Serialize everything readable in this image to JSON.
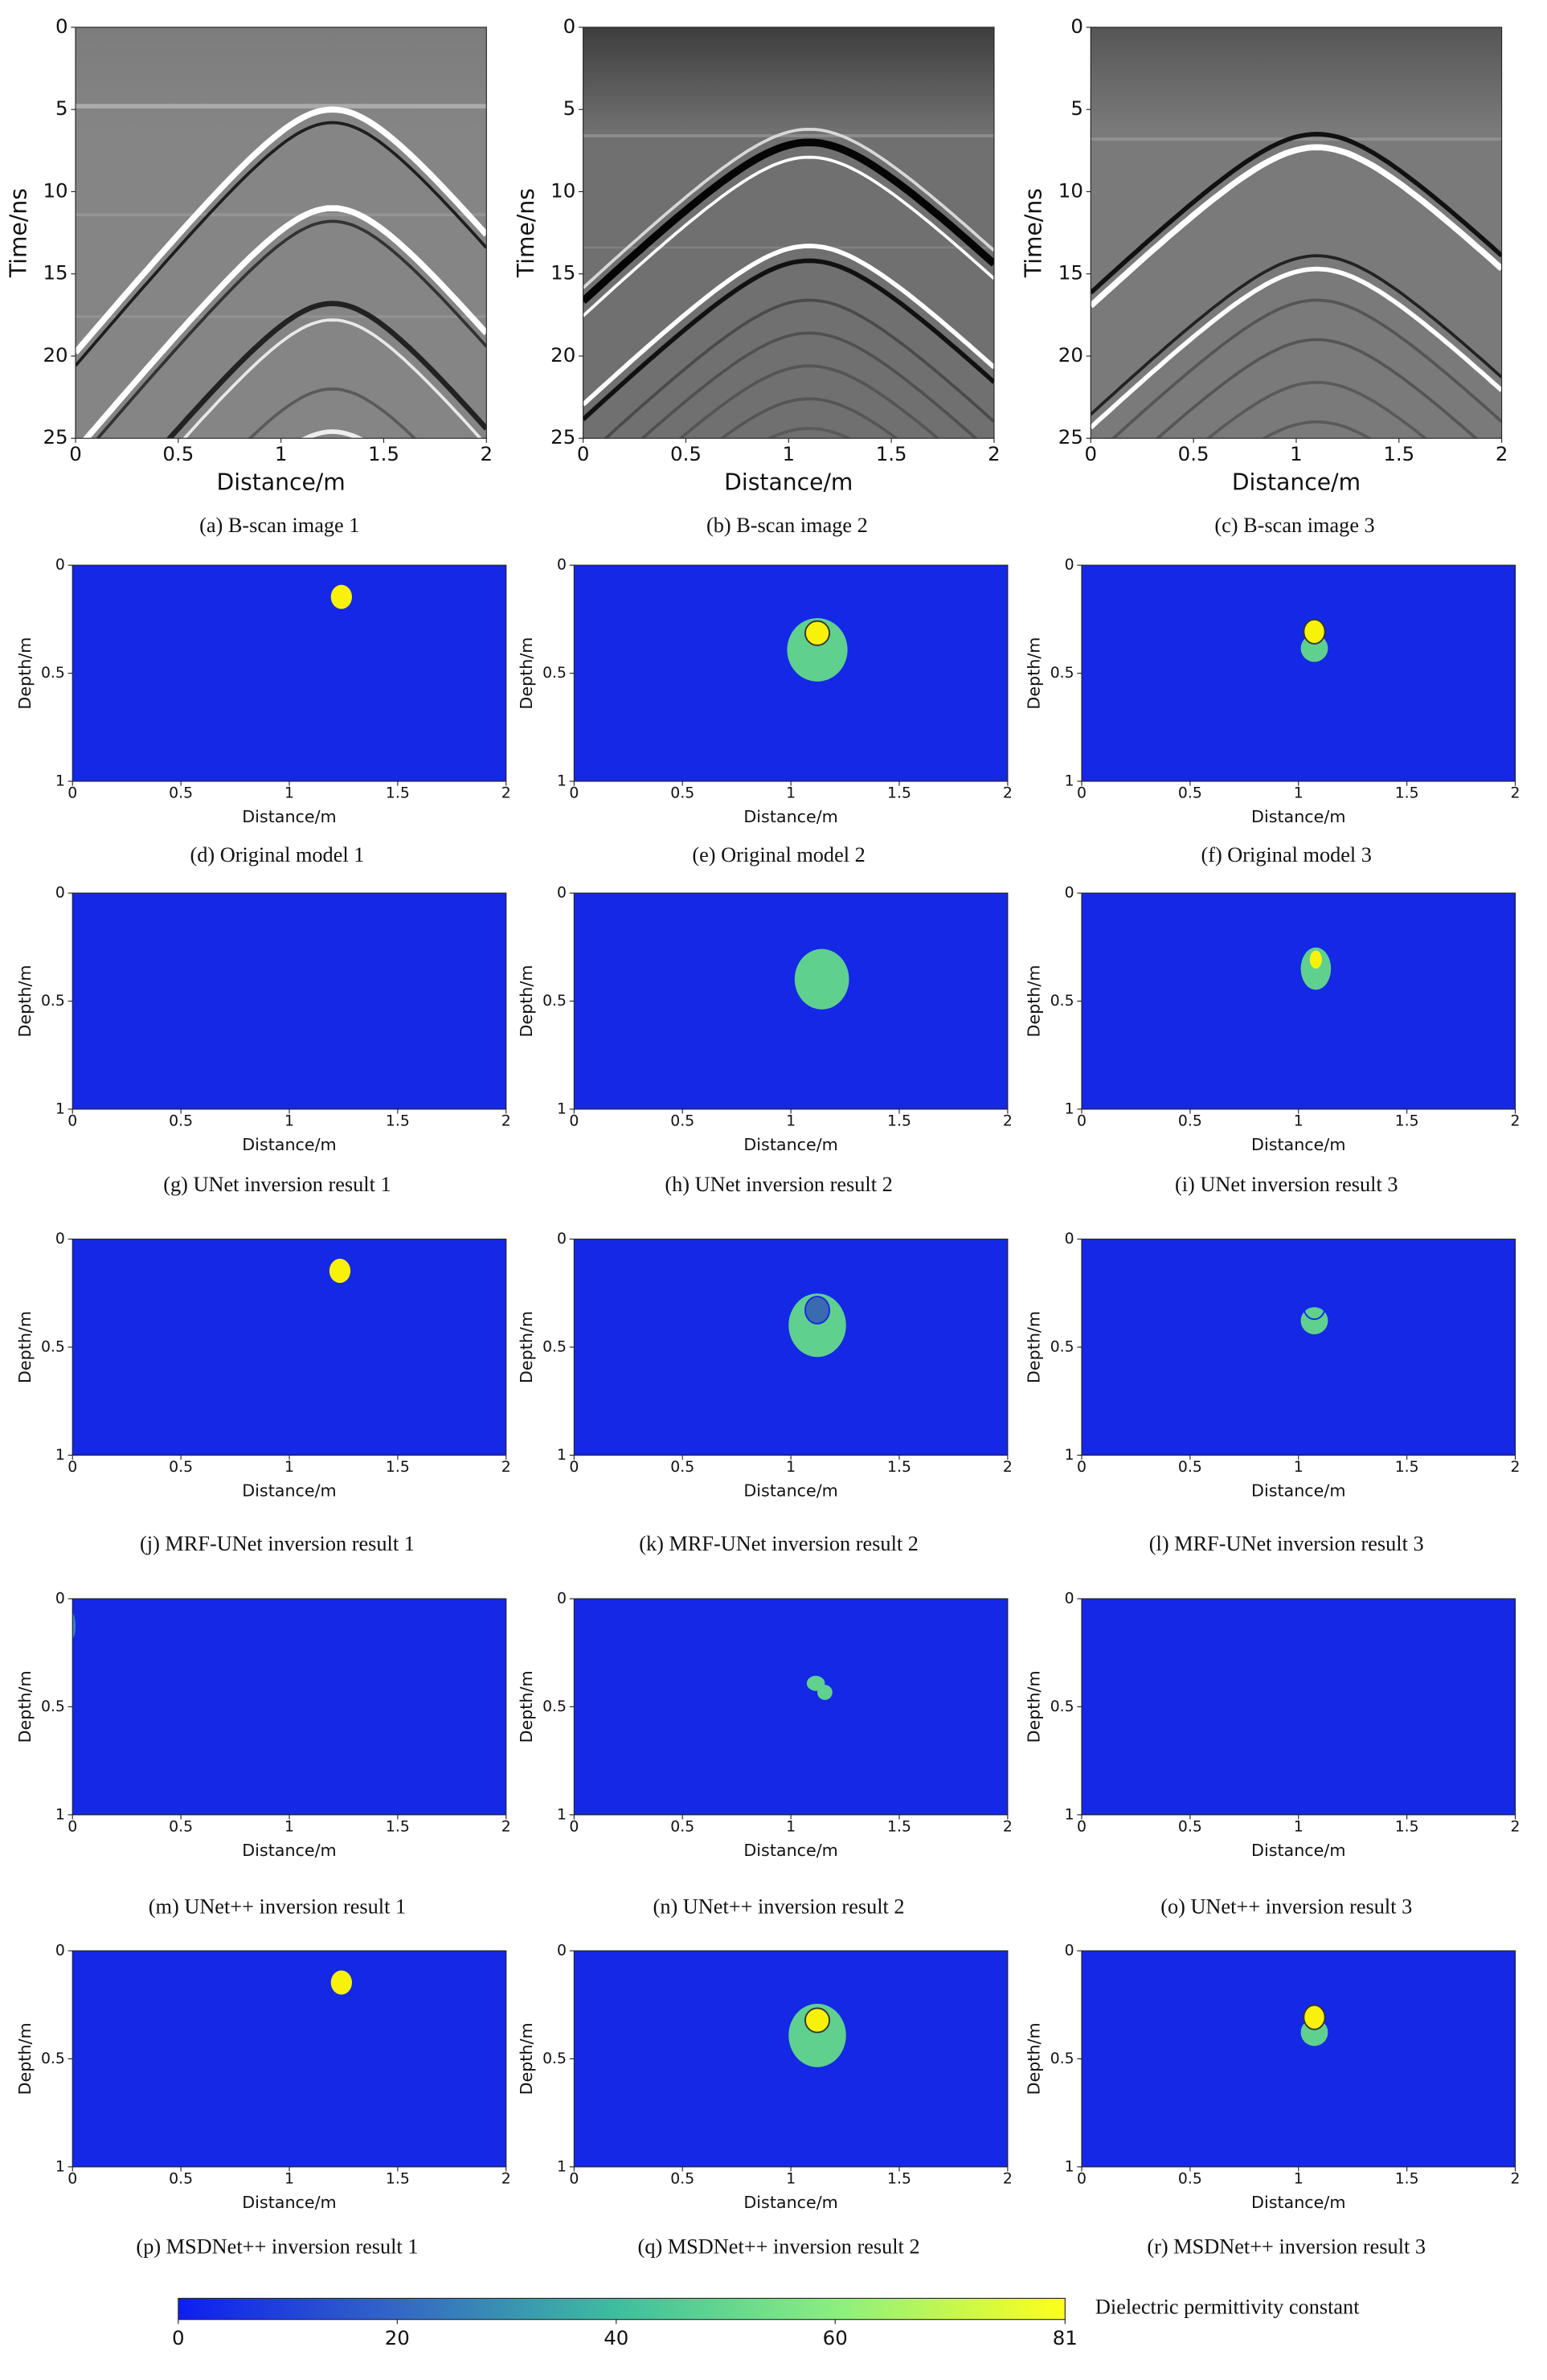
{
  "panels": [
    {
      "caption": "(a) B-scan image 1",
      "xlabel": "Distance/m",
      "ylabel": "Time/ns",
      "xlim": [
        0,
        2
      ],
      "ylim": [
        25,
        0
      ],
      "xticks": [
        0,
        0.5,
        1,
        1.5,
        2
      ],
      "yticks": [
        0,
        5,
        10,
        15,
        20,
        25
      ]
    },
    {
      "caption": "(b) B-scan image 2",
      "xlabel": "Distance/m",
      "ylabel": "Time/ns",
      "xlim": [
        0,
        2
      ],
      "ylim": [
        25,
        0
      ],
      "xticks": [
        0,
        0.5,
        1,
        1.5,
        2
      ],
      "yticks": [
        0,
        5,
        10,
        15,
        20,
        25
      ]
    },
    {
      "caption": "(c) B-scan image 3",
      "xlabel": "Distance/m",
      "ylabel": "Time/ns",
      "xlim": [
        0,
        2
      ],
      "ylim": [
        25,
        0
      ],
      "xticks": [
        0,
        0.5,
        1,
        1.5,
        2
      ],
      "yticks": [
        0,
        5,
        10,
        15,
        20,
        25
      ]
    },
    {
      "caption": "(d) Original model 1",
      "xlabel": "Distance/m",
      "ylabel": "Depth/m",
      "xlim": [
        0,
        2
      ],
      "ylim": [
        1,
        0
      ],
      "xticks": [
        0,
        0.5,
        1,
        1.5,
        2
      ],
      "yticks": [
        0,
        0.5,
        1
      ]
    },
    {
      "caption": "(e) Original model 2",
      "xlabel": "Distance/m",
      "ylabel": "Depth/m",
      "xlim": [
        0,
        2
      ],
      "ylim": [
        1,
        0
      ],
      "xticks": [
        0,
        0.5,
        1,
        1.5,
        2
      ],
      "yticks": [
        0,
        0.5,
        1
      ]
    },
    {
      "caption": "(f) Original model 3",
      "xlabel": "Distance/m",
      "ylabel": "Depth/m",
      "xlim": [
        0,
        2
      ],
      "ylim": [
        1,
        0
      ],
      "xticks": [
        0,
        0.5,
        1,
        1.5,
        2
      ],
      "yticks": [
        0,
        0.5,
        1
      ]
    },
    {
      "caption": "(g) UNet inversion result 1",
      "xlabel": "Distance/m",
      "ylabel": "Depth/m",
      "xlim": [
        0,
        2
      ],
      "ylim": [
        1,
        0
      ],
      "xticks": [
        0,
        0.5,
        1,
        1.5,
        2
      ],
      "yticks": [
        0,
        0.5,
        1
      ]
    },
    {
      "caption": "(h) UNet inversion result 2",
      "xlabel": "Distance/m",
      "ylabel": "Depth/m",
      "xlim": [
        0,
        2
      ],
      "ylim": [
        1,
        0
      ],
      "xticks": [
        0,
        0.5,
        1,
        1.5,
        2
      ],
      "yticks": [
        0,
        0.5,
        1
      ]
    },
    {
      "caption": "(i) UNet inversion result 3",
      "xlabel": "Distance/m",
      "ylabel": "Depth/m",
      "xlim": [
        0,
        2
      ],
      "ylim": [
        1,
        0
      ],
      "xticks": [
        0,
        0.5,
        1,
        1.5,
        2
      ],
      "yticks": [
        0,
        0.5,
        1
      ]
    },
    {
      "caption": "(j) MRF-UNet inversion result 1",
      "xlabel": "Distance/m",
      "ylabel": "Depth/m",
      "xlim": [
        0,
        2
      ],
      "ylim": [
        1,
        0
      ],
      "xticks": [
        0,
        0.5,
        1,
        1.5,
        2
      ],
      "yticks": [
        0,
        0.5,
        1
      ]
    },
    {
      "caption": "(k) MRF-UNet inversion result 2",
      "xlabel": "Distance/m",
      "ylabel": "Depth/m",
      "xlim": [
        0,
        2
      ],
      "ylim": [
        1,
        0
      ],
      "xticks": [
        0,
        0.5,
        1,
        1.5,
        2
      ],
      "yticks": [
        0,
        0.5,
        1
      ]
    },
    {
      "caption": "(l) MRF-UNet inversion result 3",
      "xlabel": "Distance/m",
      "ylabel": "Depth/m",
      "xlim": [
        0,
        2
      ],
      "ylim": [
        1,
        0
      ],
      "xticks": [
        0,
        0.5,
        1,
        1.5,
        2
      ],
      "yticks": [
        0,
        0.5,
        1
      ]
    },
    {
      "caption": "(m) UNet++ inversion result 1",
      "xlabel": "Distance/m",
      "ylabel": "Depth/m",
      "xlim": [
        0,
        2
      ],
      "ylim": [
        1,
        0
      ],
      "xticks": [
        0,
        0.5,
        1,
        1.5,
        2
      ],
      "yticks": [
        0,
        0.5,
        1
      ]
    },
    {
      "caption": "(n) UNet++ inversion result 2",
      "xlabel": "Distance/m",
      "ylabel": "Depth/m",
      "xlim": [
        0,
        2
      ],
      "ylim": [
        1,
        0
      ],
      "xticks": [
        0,
        0.5,
        1,
        1.5,
        2
      ],
      "yticks": [
        0,
        0.5,
        1
      ]
    },
    {
      "caption": "(o) UNet++ inversion result 3",
      "xlabel": "Distance/m",
      "ylabel": "Depth/m",
      "xlim": [
        0,
        2
      ],
      "ylim": [
        1,
        0
      ],
      "xticks": [
        0,
        0.5,
        1,
        1.5,
        2
      ],
      "yticks": [
        0,
        0.5,
        1
      ]
    },
    {
      "caption": "(p) MSDNet++ inversion result 1",
      "xlabel": "Distance/m",
      "ylabel": "Depth/m",
      "xlim": [
        0,
        2
      ],
      "ylim": [
        1,
        0
      ],
      "xticks": [
        0,
        0.5,
        1,
        1.5,
        2
      ],
      "yticks": [
        0,
        0.5,
        1
      ]
    },
    {
      "caption": "(q) MSDNet++ inversion result 2",
      "xlabel": "Distance/m",
      "ylabel": "Depth/m",
      "xlim": [
        0,
        2
      ],
      "ylim": [
        1,
        0
      ],
      "xticks": [
        0,
        0.5,
        1,
        1.5,
        2
      ],
      "yticks": [
        0,
        0.5,
        1
      ]
    },
    {
      "caption": "(r) MSDNet++ inversion result 3",
      "xlabel": "Distance/m",
      "ylabel": "Depth/m",
      "xlim": [
        0,
        2
      ],
      "ylim": [
        1,
        0
      ],
      "xticks": [
        0,
        0.5,
        1,
        1.5,
        2
      ],
      "yticks": [
        0,
        0.5,
        1
      ]
    }
  ],
  "colorbar": {
    "label": "Dielectric permittivity constant",
    "clim": [
      0,
      81
    ],
    "ticks": [
      0,
      20,
      40,
      60,
      81
    ]
  }
}
